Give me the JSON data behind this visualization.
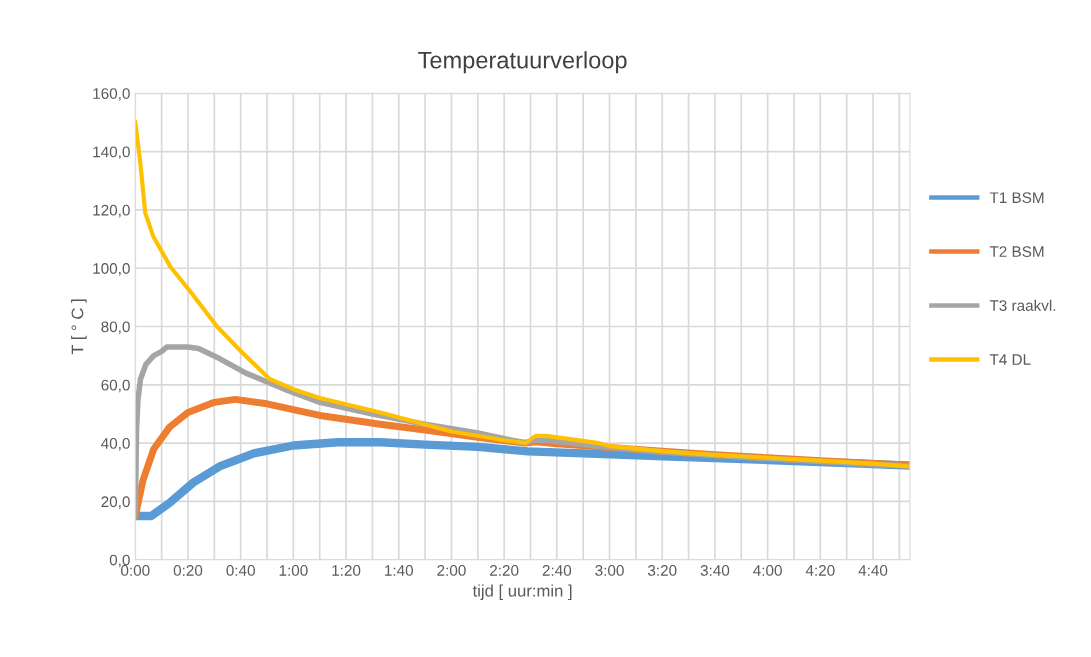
{
  "chart_data": {
    "type": "line",
    "title": "Temperatuurverloop",
    "xlabel": "tijd [ uur:min ]",
    "ylabel": "T [ ° C ]",
    "xlim": [
      0,
      4.9
    ],
    "ylim": [
      0,
      160
    ],
    "xticks": [
      {
        "value": 0,
        "label": "0:00"
      },
      {
        "value": 0.1667,
        "label": null
      },
      {
        "value": 0.3333,
        "label": "0:20"
      },
      {
        "value": 0.5,
        "label": null
      },
      {
        "value": 0.6667,
        "label": "0:40"
      },
      {
        "value": 0.8333,
        "label": null
      },
      {
        "value": 1,
        "label": "1:00"
      },
      {
        "value": 1.1667,
        "label": null
      },
      {
        "value": 1.3333,
        "label": "1:20"
      },
      {
        "value": 1.5,
        "label": null
      },
      {
        "value": 1.6667,
        "label": "1:40"
      },
      {
        "value": 1.8333,
        "label": null
      },
      {
        "value": 2,
        "label": "2:00"
      },
      {
        "value": 2.1667,
        "label": null
      },
      {
        "value": 2.3333,
        "label": "2:20"
      },
      {
        "value": 2.5,
        "label": null
      },
      {
        "value": 2.6667,
        "label": "2:40"
      },
      {
        "value": 2.8333,
        "label": null
      },
      {
        "value": 3,
        "label": "3:00"
      },
      {
        "value": 3.1667,
        "label": null
      },
      {
        "value": 3.3333,
        "label": "3:20"
      },
      {
        "value": 3.5,
        "label": null
      },
      {
        "value": 3.6667,
        "label": "3:40"
      },
      {
        "value": 3.8333,
        "label": null
      },
      {
        "value": 4,
        "label": "4:00"
      },
      {
        "value": 4.1667,
        "label": null
      },
      {
        "value": 4.3333,
        "label": "4:20"
      },
      {
        "value": 4.5,
        "label": null
      },
      {
        "value": 4.6667,
        "label": "4:40"
      },
      {
        "value": 4.8333,
        "label": null
      }
    ],
    "yticks": [
      {
        "value": 0,
        "label": "0,0"
      },
      {
        "value": 20,
        "label": "20,0"
      },
      {
        "value": 40,
        "label": "40,0"
      },
      {
        "value": 60,
        "label": "60,0"
      },
      {
        "value": 80,
        "label": "80,0"
      },
      {
        "value": 100,
        "label": "100,0"
      },
      {
        "value": 120,
        "label": "120,0"
      },
      {
        "value": 140,
        "label": "140,0"
      },
      {
        "value": 160,
        "label": "160,0"
      }
    ],
    "grid": true,
    "legend": "right",
    "line_style": "solid",
    "series": [
      {
        "name": "T1 BSM",
        "color": "#5b9bd5",
        "x": [
          0,
          0.1,
          0.217,
          0.367,
          0.533,
          0.75,
          1,
          1.283,
          1.55,
          1.833,
          2.167,
          2.483,
          2.833,
          3.383,
          4,
          4.5,
          4.9
        ],
        "values": [
          15,
          15,
          19.5,
          26.5,
          32,
          36.5,
          39.2,
          40.3,
          40.3,
          39.5,
          38.7,
          37.2,
          36.5,
          35.4,
          34.2,
          33.2,
          32.3
        ]
      },
      {
        "name": "T2 BSM",
        "color": "#ed7d31",
        "x": [
          0,
          0.05,
          0.117,
          0.217,
          0.333,
          0.5,
          0.633,
          0.833,
          1,
          1.167,
          1.55,
          1.833,
          2.167,
          2.467,
          2.533,
          2.667,
          3,
          3.333,
          3.667,
          4,
          4.333,
          4.667,
          4.9
        ],
        "values": [
          15,
          27.5,
          38,
          45.5,
          50.5,
          54,
          55,
          53.5,
          51.5,
          49.5,
          46.5,
          44.5,
          42,
          40,
          40.5,
          39.8,
          38.5,
          37.2,
          36,
          35,
          34,
          33,
          32.5
        ]
      },
      {
        "name": "T3 raakvl.",
        "color": "#a5a5a5",
        "x": [
          0,
          0.008,
          0.017,
          0.033,
          0.067,
          0.117,
          0.167,
          0.2,
          0.333,
          0.4,
          0.533,
          0.7,
          0.967,
          1.167,
          1.5,
          1.833,
          2.167,
          2.467,
          2.517,
          2.6,
          2.833,
          3,
          3.333,
          3.667,
          4,
          4.333,
          4.667,
          4.9
        ],
        "values": [
          15,
          45,
          55,
          62,
          67,
          70,
          71.5,
          73,
          73,
          72.5,
          69,
          64,
          58,
          54,
          50,
          46.5,
          43.5,
          40,
          41,
          41,
          39.5,
          38.5,
          37,
          35.8,
          34.7,
          33.7,
          32.7,
          32.2
        ]
      },
      {
        "name": "T4 DL",
        "color": "#ffc000",
        "x": [
          0,
          0.032,
          0.063,
          0.113,
          0.222,
          0.348,
          0.517,
          0.677,
          0.85,
          1,
          1.167,
          1.55,
          2,
          2.333,
          2.467,
          2.533,
          2.6,
          2.933,
          3,
          3.383,
          3.667,
          4,
          4.333,
          4.667,
          4.9
        ],
        "values": [
          150,
          136,
          119,
          111,
          100.5,
          92,
          80,
          71,
          62,
          58.5,
          55.5,
          50.5,
          44,
          41,
          40,
          42.5,
          42.5,
          40,
          39,
          37,
          36,
          35,
          34,
          33,
          32
        ]
      }
    ]
  }
}
